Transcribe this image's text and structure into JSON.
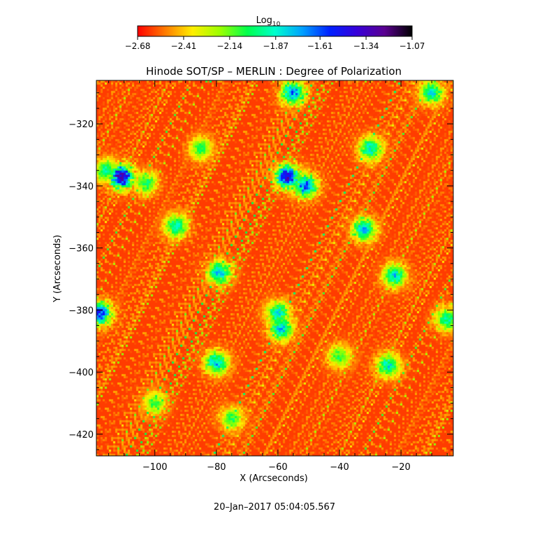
{
  "chart_data": {
    "type": "heatmap",
    "title": "Hinode SOT/SP – MERLIN : Degree of Polarization",
    "xlabel": "X (Arcseconds)",
    "ylabel": "Y (Arcseconds)",
    "xlim": [
      -119,
      -3
    ],
    "ylim": [
      -427,
      -306
    ],
    "x_ticks": [
      -100,
      -80,
      -60,
      -40,
      -20
    ],
    "y_ticks": [
      -320,
      -340,
      -360,
      -380,
      -400,
      -420
    ],
    "x_tick_labels": [
      "−100",
      "−80",
      "−60",
      "−40",
      "−20"
    ],
    "y_tick_labels": [
      "−320",
      "−340",
      "−360",
      "−380",
      "−400",
      "−420"
    ],
    "colorbar": {
      "label": "Log",
      "label_subscript": "10",
      "range": [
        -2.68,
        -1.07
      ],
      "tick_values": [
        -2.68,
        -2.41,
        -2.14,
        -1.87,
        -1.61,
        -1.34,
        -1.07
      ],
      "tick_labels": [
        "−2.68",
        "−2.41",
        "−2.14",
        "−1.87",
        "−1.61",
        "−1.34",
        "−1.07"
      ],
      "colors": [
        "#ff0000",
        "#ff7a00",
        "#ffee00",
        "#9cff00",
        "#00ff4c",
        "#00ffcc",
        "#00a0ff",
        "#0020ff",
        "#3800d8",
        "#5a0090",
        "#000000"
      ]
    },
    "typical_value": -2.6,
    "features": [
      {
        "x": -111,
        "y": -337,
        "peak": -1.2
      },
      {
        "x": -103,
        "y": -339,
        "peak": -1.95
      },
      {
        "x": -116,
        "y": -335,
        "peak": -1.9
      },
      {
        "x": -57,
        "y": -337,
        "peak": -1.2
      },
      {
        "x": -51,
        "y": -340,
        "peak": -1.5
      },
      {
        "x": -93,
        "y": -353,
        "peak": -1.8
      },
      {
        "x": -32,
        "y": -354,
        "peak": -1.7
      },
      {
        "x": -79,
        "y": -368,
        "peak": -1.7
      },
      {
        "x": -22,
        "y": -369,
        "peak": -1.75
      },
      {
        "x": -118,
        "y": -381,
        "peak": -1.45
      },
      {
        "x": -60,
        "y": -381,
        "peak": -1.8
      },
      {
        "x": -59,
        "y": -386,
        "peak": -1.7
      },
      {
        "x": -80,
        "y": -397,
        "peak": -1.7
      },
      {
        "x": -24,
        "y": -398,
        "peak": -1.8
      },
      {
        "x": -5,
        "y": -383,
        "peak": -1.85
      },
      {
        "x": -55,
        "y": -310,
        "peak": -1.6
      },
      {
        "x": -10,
        "y": -310,
        "peak": -1.75
      },
      {
        "x": -30,
        "y": -328,
        "peak": -1.8
      },
      {
        "x": -85,
        "y": -328,
        "peak": -2.0
      },
      {
        "x": -40,
        "y": -395,
        "peak": -2.0
      },
      {
        "x": -100,
        "y": -410,
        "peak": -2.05
      },
      {
        "x": -75,
        "y": -415,
        "peak": -2.0
      }
    ],
    "grid": false
  },
  "footer": {
    "timestamp": "20–Jan–2017 05:04:05.567"
  }
}
